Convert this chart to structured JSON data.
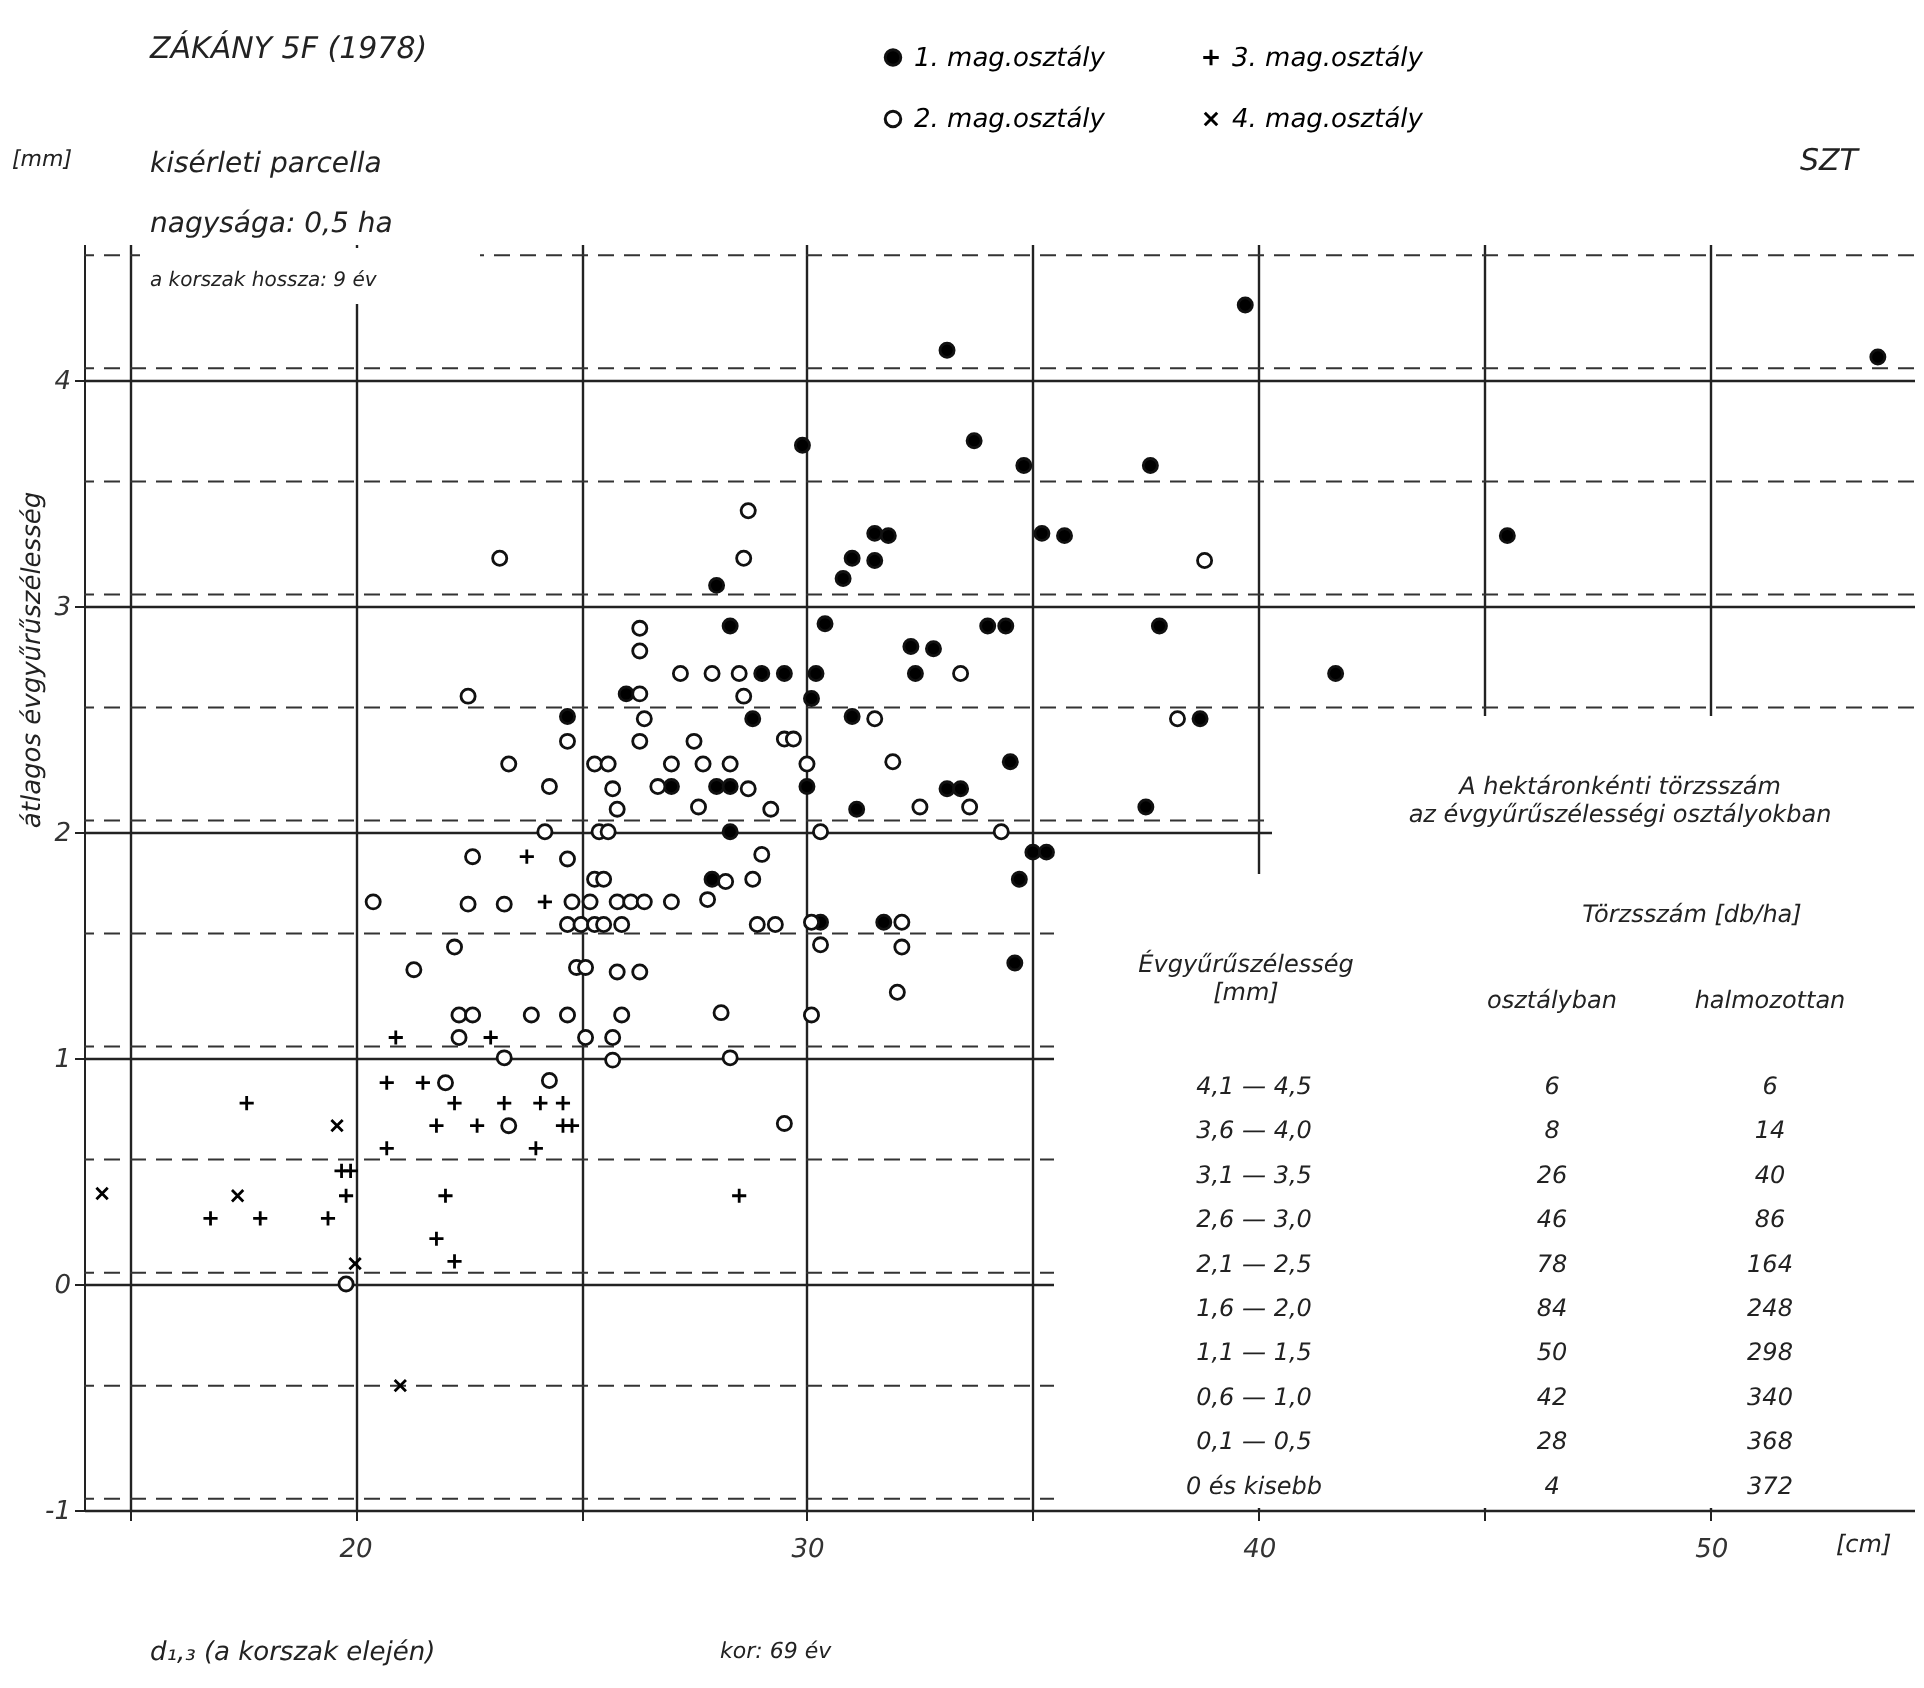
{
  "chart_data": [
    {
      "type": "scatter",
      "title": "ZÁKÁNY 5F (1978)",
      "xlabel": "d₁,₃ (a korszak elején)",
      "ylabel": "átlagos évgyűrűszélesség",
      "annotations": [
        "[mm]",
        "[cm]",
        "kisérleti parcella",
        "nagysága: 0,5 ha",
        "a korszak hossza: 9 év",
        "SZT",
        "kor: 69 év"
      ],
      "xlim": [
        14,
        54.5
      ],
      "ylim": [
        -1,
        4.6
      ],
      "xticks": [
        {
          "value": 15,
          "label": null
        },
        20,
        {
          "value": 25,
          "label": null
        },
        30,
        {
          "value": 35,
          "label": null
        },
        40,
        {
          "value": 45,
          "label": null
        },
        50
      ],
      "yticks": [
        -1,
        0,
        1,
        2,
        3,
        4
      ],
      "grid": true,
      "legend": "top",
      "ref_lines": [
        {
          "axis": "y",
          "value": -0.95,
          "line_style": "dashed"
        },
        {
          "axis": "y",
          "value": -0.45,
          "line_style": "dashed"
        },
        {
          "axis": "y",
          "value": 0.05,
          "line_style": "dashed"
        },
        {
          "axis": "y",
          "value": 0.55,
          "line_style": "dashed"
        },
        {
          "axis": "y",
          "value": 1.05,
          "line_style": "dashed"
        },
        {
          "axis": "y",
          "value": 1.55,
          "line_style": "dashed"
        },
        {
          "axis": "y",
          "value": 2.05,
          "line_style": "dashed"
        },
        {
          "axis": "y",
          "value": 2.55,
          "line_style": "dashed"
        },
        {
          "axis": "y",
          "value": 3.05,
          "line_style": "dashed"
        },
        {
          "axis": "y",
          "value": 3.55,
          "line_style": "dashed"
        },
        {
          "axis": "y",
          "value": 4.05,
          "line_style": "dashed"
        },
        {
          "axis": "y",
          "value": 4.55,
          "line_style": "dashed"
        }
      ],
      "series": [
        {
          "name": "1. mag.osztály",
          "color": "#000000",
          "marker": "circle",
          "x": [
            33.1,
            29.9,
            28.0,
            30.8,
            31.0,
            31.5,
            31.5,
            31.8,
            28.3,
            30.4,
            32.3,
            32.8,
            32.4,
            29.0,
            29.5,
            30.2,
            26.0,
            30.1,
            24.7,
            28.8,
            31.0,
            27.0,
            28.0,
            28.3,
            30.0,
            33.1,
            33.4,
            31.1,
            28.3,
            39.7,
            53.7,
            33.7,
            34.8,
            37.6,
            35.2,
            35.7,
            45.5,
            34.0,
            34.4,
            37.8,
            41.7,
            38.7,
            34.5,
            37.5,
            35.0,
            35.3,
            34.7,
            34.6,
            27.9,
            30.3,
            31.7
          ],
          "values": [
            4.13,
            3.71,
            3.09,
            3.12,
            3.21,
            3.2,
            3.32,
            3.31,
            2.91,
            2.92,
            2.82,
            2.81,
            2.7,
            2.7,
            2.7,
            2.7,
            2.61,
            2.59,
            2.51,
            2.5,
            2.51,
            2.2,
            2.2,
            2.2,
            2.2,
            2.19,
            2.19,
            2.1,
            2.0,
            4.33,
            4.1,
            3.73,
            3.62,
            3.62,
            3.32,
            3.31,
            3.31,
            2.91,
            2.91,
            2.91,
            2.7,
            2.5,
            2.31,
            2.11,
            1.91,
            1.91,
            1.79,
            1.42,
            1.79,
            1.6,
            1.6
          ]
        },
        {
          "name": "2. mag.osztály",
          "color": "#ffffff",
          "marker": "circle",
          "x": [
            23.2,
            28.7,
            28.6,
            26.3,
            26.3,
            27.2,
            27.9,
            28.5,
            22.5,
            26.3,
            28.6,
            26.4,
            24.7,
            26.3,
            27.5,
            29.5,
            29.7,
            31.5,
            38.8,
            33.4,
            38.2,
            31.9,
            32.5,
            33.6,
            34.3,
            23.4,
            25.3,
            25.6,
            27.0,
            27.7,
            28.3,
            30.0,
            24.3,
            25.7,
            26.7,
            28.7,
            25.8,
            27.6,
            29.2,
            24.2,
            25.4,
            25.6,
            30.3,
            22.6,
            24.7,
            29.0,
            25.3,
            25.5,
            28.2,
            28.8,
            20.4,
            22.5,
            23.3,
            24.8,
            25.2,
            25.8,
            26.1,
            26.4,
            27.0,
            27.8,
            24.7,
            25.0,
            25.3,
            25.5,
            25.9,
            28.9,
            29.3,
            30.1,
            32.1,
            22.2,
            30.3,
            32.1,
            21.3,
            24.9,
            25.1,
            25.8,
            26.3,
            32.0,
            22.3,
            22.6,
            23.9,
            24.7,
            25.9,
            28.1,
            30.1,
            22.3,
            25.1,
            25.7,
            23.3,
            25.7,
            28.3,
            22.0,
            24.3,
            23.4,
            29.5,
            19.8
          ],
          "values": [
            3.21,
            3.42,
            3.21,
            2.9,
            2.8,
            2.7,
            2.7,
            2.7,
            2.6,
            2.61,
            2.6,
            2.5,
            2.4,
            2.4,
            2.4,
            2.41,
            2.41,
            2.5,
            3.2,
            2.7,
            2.5,
            2.31,
            2.11,
            2.11,
            2.0,
            2.3,
            2.3,
            2.3,
            2.3,
            2.3,
            2.3,
            2.3,
            2.2,
            2.19,
            2.2,
            2.19,
            2.1,
            2.11,
            2.1,
            2.0,
            2.0,
            2.0,
            2.0,
            1.89,
            1.88,
            1.9,
            1.79,
            1.79,
            1.78,
            1.79,
            1.69,
            1.68,
            1.68,
            1.69,
            1.69,
            1.69,
            1.69,
            1.69,
            1.69,
            1.7,
            1.59,
            1.59,
            1.59,
            1.59,
            1.59,
            1.59,
            1.59,
            1.6,
            1.6,
            1.49,
            1.5,
            1.49,
            1.39,
            1.4,
            1.4,
            1.38,
            1.38,
            1.29,
            1.19,
            1.19,
            1.19,
            1.19,
            1.19,
            1.2,
            1.19,
            1.09,
            1.09,
            1.09,
            1.0,
            0.99,
            1.0,
            0.89,
            0.9,
            0.7,
            0.71,
            0.0
          ]
        },
        {
          "name": "3. mag.osztály",
          "color": "#000000",
          "marker": "cross",
          "x": [
            23.8,
            24.2,
            20.9,
            23.0,
            20.7,
            21.5,
            17.6,
            22.2,
            23.3,
            24.1,
            24.6,
            21.8,
            22.7,
            24.6,
            24.8,
            20.7,
            24.0,
            19.7,
            19.9,
            19.8,
            22.0,
            28.5,
            16.8,
            17.9,
            19.4,
            21.8,
            22.2
          ],
          "values": [
            1.89,
            1.69,
            1.09,
            1.09,
            0.89,
            0.89,
            0.8,
            0.8,
            0.8,
            0.8,
            0.8,
            0.7,
            0.7,
            0.7,
            0.7,
            0.6,
            0.6,
            0.5,
            0.5,
            0.39,
            0.39,
            0.39,
            0.29,
            0.29,
            0.29,
            0.2,
            0.1
          ]
        },
        {
          "name": "4. mag.osztály",
          "color": "#000000",
          "marker": "x",
          "x": [
            19.6,
            14.4,
            17.4,
            20.0,
            21.0
          ],
          "values": [
            0.7,
            0.4,
            0.39,
            0.09,
            -0.45
          ]
        }
      ]
    },
    {
      "type": "other",
      "title": "A hektáronkénti törzsszám\naz évgyűrűszélességi osztályokban",
      "annotations": [
        "Évgyűrűszélesség\n[mm]",
        "Törzsszám [db/ha]"
      ],
      "categories": [
        "4,1 — 4,5",
        "3,6 — 4,0",
        "3,1 — 3,5",
        "2,6 — 3,0",
        "2,1 — 2,5",
        "1,6 — 2,0",
        "1,1 — 1,5",
        "0,6 — 1,0",
        "0,1 — 0,5",
        "0 és kisebb"
      ],
      "data_labels": true,
      "series": [
        {
          "name": "osztályban",
          "values": [
            6,
            8,
            26,
            46,
            78,
            84,
            50,
            42,
            28,
            4
          ]
        },
        {
          "name": "halmozottan",
          "values": [
            6,
            14,
            40,
            86,
            164,
            248,
            298,
            340,
            368,
            372
          ]
        }
      ]
    }
  ]
}
